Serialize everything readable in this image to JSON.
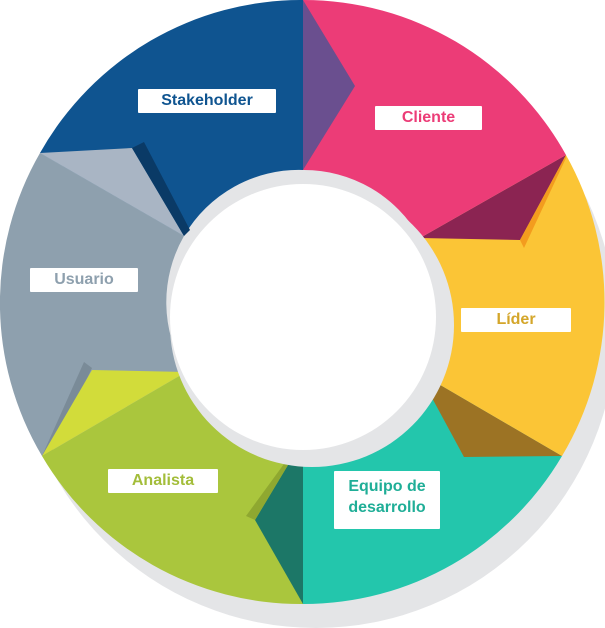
{
  "roles": {
    "stakeholder": {
      "label": "Stakeholder",
      "color": "#0f5490"
    },
    "cliente": {
      "label": "Cliente",
      "color": "#ec3c77"
    },
    "lider": {
      "label": "Líder",
      "color": "#fbc536"
    },
    "equipo": {
      "label": "Equipo de desarrollo",
      "color": "#23c6ac"
    },
    "analista": {
      "label": "Analista",
      "color": "#aac63d"
    },
    "usuario": {
      "label": "Usuario",
      "color": "#8ea0ae"
    }
  },
  "accents": {
    "purple": "#6a4f8f",
    "maroon": "#8b2452",
    "brown": "#9c7324",
    "dark_teal": "#1c7767",
    "yellow_green": "#d2dc3a",
    "light_gray": "#a9b5c4",
    "shadow": "#e4e5e7"
  }
}
